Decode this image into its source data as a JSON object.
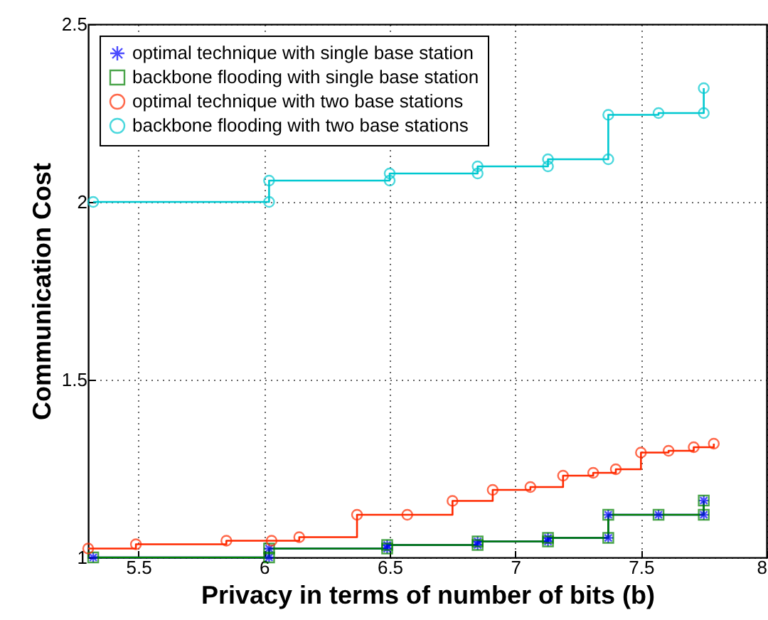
{
  "chart_data": {
    "type": "step",
    "xlabel": "Privacy in terms of number of bits (b)",
    "ylabel": "Communication Cost",
    "xlim": [
      5.3,
      8
    ],
    "xticks": [
      5.5,
      6,
      6.5,
      7,
      7.5,
      8
    ],
    "ylim": [
      1,
      2.5
    ],
    "yticks": [
      1,
      1.5,
      2,
      2.5
    ],
    "grid": true,
    "legend": "top left",
    "series": [
      {
        "name": "optimal technique with single base station",
        "color": "#0000ff",
        "marker": "cross",
        "x": [
          5.32,
          6.02,
          6.02,
          6.49,
          6.49,
          6.85,
          6.85,
          7.13,
          7.13,
          7.37,
          7.37,
          7.57,
          7.75,
          7.75
        ],
        "values": [
          1.0,
          1.0,
          1.025,
          1.025,
          1.035,
          1.035,
          1.045,
          1.045,
          1.055,
          1.055,
          1.12,
          1.12,
          1.12,
          1.16
        ]
      },
      {
        "name": "backbone flooding with single base station",
        "color": "#008000",
        "marker": "square",
        "x": [
          5.32,
          6.02,
          6.02,
          6.49,
          6.49,
          6.85,
          6.85,
          7.13,
          7.13,
          7.37,
          7.37,
          7.57,
          7.75,
          7.75
        ],
        "values": [
          1.0,
          1.0,
          1.025,
          1.025,
          1.035,
          1.035,
          1.045,
          1.045,
          1.055,
          1.055,
          1.12,
          1.12,
          1.12,
          1.16
        ]
      },
      {
        "name": "optimal technique with two base stations",
        "color": "#ff2a00",
        "marker": "circle",
        "x": [
          5.3,
          5.49,
          5.85,
          6.03,
          6.14,
          6.37,
          6.57,
          6.75,
          6.91,
          7.06,
          7.19,
          7.31,
          7.4,
          7.5,
          7.61,
          7.71,
          7.79
        ],
        "values": [
          1.025,
          1.037,
          1.047,
          1.047,
          1.057,
          1.12,
          1.12,
          1.159,
          1.19,
          1.198,
          1.23,
          1.238,
          1.248,
          1.295,
          1.3,
          1.31,
          1.32
        ]
      },
      {
        "name": "backbone flooding with two base stations",
        "color": "#00c8d0",
        "marker": "circle",
        "x": [
          5.32,
          6.02,
          6.02,
          6.5,
          6.5,
          6.85,
          6.85,
          7.13,
          7.13,
          7.37,
          7.37,
          7.57,
          7.75,
          7.75
        ],
        "values": [
          2.0,
          2.0,
          2.06,
          2.06,
          2.08,
          2.08,
          2.1,
          2.1,
          2.12,
          2.12,
          2.245,
          2.25,
          2.25,
          2.32
        ]
      }
    ]
  }
}
